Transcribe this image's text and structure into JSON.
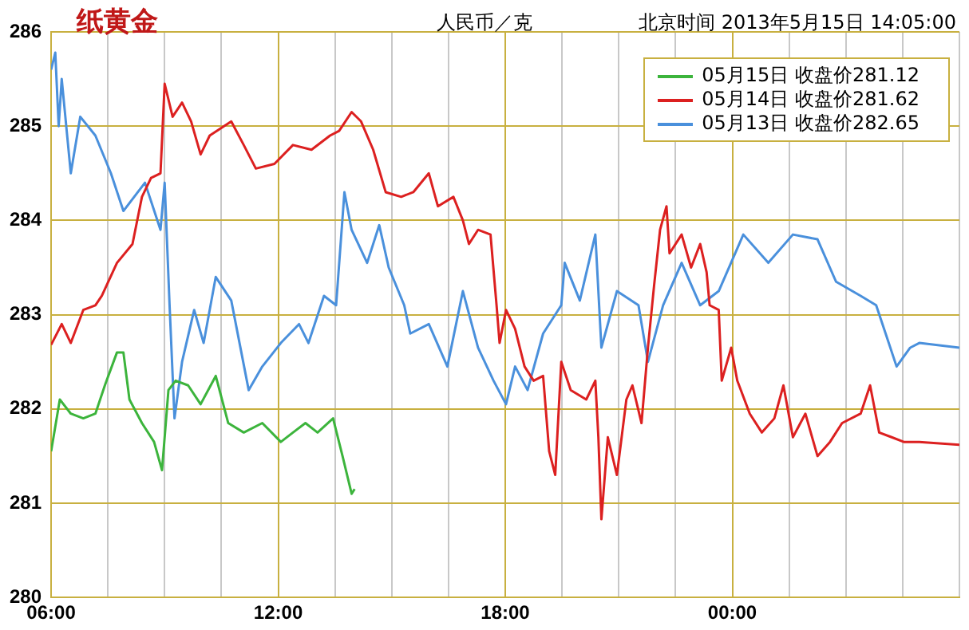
{
  "chart_data": {
    "type": "line",
    "title": "纸黄金",
    "ylabel": "人民币／克",
    "annotations": [
      "北京时间 2013年5月15日 14:05:00"
    ],
    "xlim": [
      6,
      30
    ],
    "xticks": [
      {
        "value": 6,
        "label": "06:00"
      },
      {
        "value": 7.5,
        "label": null
      },
      {
        "value": 9,
        "label": null
      },
      {
        "value": 10.5,
        "label": null
      },
      {
        "value": 12,
        "label": "12:00"
      },
      {
        "value": 13.5,
        "label": null
      },
      {
        "value": 15,
        "label": null
      },
      {
        "value": 16.5,
        "label": null
      },
      {
        "value": 18,
        "label": "18:00"
      },
      {
        "value": 19.5,
        "label": null
      },
      {
        "value": 21,
        "label": null
      },
      {
        "value": 22.5,
        "label": null
      },
      {
        "value": 24,
        "label": "00:00"
      },
      {
        "value": 25.5,
        "label": null
      },
      {
        "value": 27,
        "label": null
      },
      {
        "value": 28.5,
        "label": null
      },
      {
        "value": 30,
        "label": null
      }
    ],
    "ylim": [
      280,
      286
    ],
    "yticks": [
      280,
      281,
      282,
      283,
      284,
      285,
      286
    ],
    "grid": true,
    "legend": "top right",
    "marker": "none",
    "line_style": "solid",
    "series": [
      {
        "name": "05月15日 收盘价281.12",
        "color": "#3cb43c",
        "x": [
          6.0,
          6.23,
          6.52,
          6.85,
          7.17,
          7.42,
          7.74,
          7.91,
          8.07,
          8.4,
          8.72,
          8.93,
          9.1,
          9.29,
          9.62,
          9.95,
          10.35,
          10.68,
          11.09,
          11.58,
          12.07,
          12.39,
          12.72,
          13.04,
          13.45,
          13.7,
          13.94,
          14.02
        ],
        "values": [
          281.55,
          282.1,
          281.95,
          281.9,
          281.95,
          282.25,
          282.6,
          282.6,
          282.1,
          281.85,
          281.65,
          281.35,
          282.2,
          282.3,
          282.25,
          282.05,
          282.35,
          281.85,
          281.75,
          281.85,
          281.65,
          281.75,
          281.85,
          281.75,
          281.9,
          281.5,
          281.1,
          281.15
        ]
      },
      {
        "name": "05月14日 收盘价281.62",
        "color": "#dc2020",
        "x": [
          6.0,
          6.28,
          6.52,
          6.85,
          7.17,
          7.34,
          7.74,
          8.15,
          8.4,
          8.64,
          8.89,
          9.0,
          9.21,
          9.46,
          9.7,
          9.95,
          10.19,
          10.76,
          11.09,
          11.41,
          11.9,
          12.39,
          12.88,
          13.37,
          13.61,
          13.94,
          14.19,
          14.51,
          14.84,
          15.25,
          15.57,
          15.98,
          16.22,
          16.63,
          16.88,
          17.04,
          17.28,
          17.61,
          17.77,
          17.85,
          18.02,
          18.26,
          18.51,
          18.75,
          19.0,
          19.16,
          19.32,
          19.48,
          19.73,
          20.14,
          20.38,
          20.46,
          20.54,
          20.71,
          20.95,
          21.2,
          21.36,
          21.6,
          21.77,
          21.93,
          22.09,
          22.26,
          22.34,
          22.66,
          22.91,
          23.15,
          23.32,
          23.4,
          23.64,
          23.72,
          23.97,
          24.13,
          24.46,
          24.78,
          25.11,
          25.35,
          25.6,
          25.93,
          26.25,
          26.58,
          26.9,
          27.39,
          27.64,
          27.88,
          28.21,
          28.53,
          28.94,
          30
        ],
        "values": [
          282.68,
          282.9,
          282.7,
          283.05,
          283.1,
          283.2,
          283.55,
          283.75,
          284.25,
          284.45,
          284.5,
          285.45,
          285.1,
          285.25,
          285.05,
          284.7,
          284.9,
          285.05,
          284.8,
          284.55,
          284.6,
          284.8,
          284.75,
          284.9,
          284.95,
          285.15,
          285.05,
          284.75,
          284.3,
          284.25,
          284.3,
          284.5,
          284.15,
          284.25,
          284.0,
          283.75,
          283.9,
          283.85,
          283.1,
          282.7,
          283.05,
          282.85,
          282.45,
          282.3,
          282.35,
          281.55,
          281.3,
          282.5,
          282.2,
          282.1,
          282.3,
          281.7,
          280.83,
          281.7,
          281.3,
          282.1,
          282.25,
          281.85,
          282.65,
          283.3,
          283.9,
          284.15,
          283.65,
          283.85,
          283.5,
          283.75,
          283.45,
          283.1,
          283.05,
          282.3,
          282.65,
          282.3,
          281.95,
          281.75,
          281.9,
          282.25,
          281.7,
          281.95,
          281.5,
          281.65,
          281.85,
          281.95,
          282.25,
          281.75,
          281.7,
          281.65,
          281.65,
          281.62
        ]
      },
      {
        "name": "05月13日 收盘价282.65",
        "color": "#4a90dc",
        "x": [
          6.0,
          6.11,
          6.2,
          6.28,
          6.52,
          6.77,
          7.17,
          7.58,
          7.91,
          8.48,
          8.89,
          9.0,
          9.13,
          9.16,
          9.26,
          9.46,
          9.78,
          10.03,
          10.35,
          10.76,
          11.22,
          11.58,
          12.07,
          12.55,
          12.8,
          13.21,
          13.53,
          13.75,
          13.94,
          14.35,
          14.67,
          14.92,
          15.33,
          15.49,
          15.98,
          16.47,
          16.88,
          17.28,
          17.69,
          18.02,
          18.26,
          18.59,
          19.0,
          19.48,
          19.57,
          19.97,
          20.38,
          20.54,
          20.95,
          21.52,
          21.77,
          22.17,
          22.66,
          23.15,
          23.64,
          24.29,
          24.95,
          25.6,
          26.25,
          26.74,
          27.39,
          27.8,
          28.05,
          28.34,
          28.7,
          28.94,
          30
        ],
        "values": [
          285.6,
          285.78,
          285.0,
          285.5,
          284.5,
          285.1,
          284.9,
          284.5,
          284.1,
          284.4,
          283.9,
          284.4,
          283.1,
          283.1,
          281.9,
          282.5,
          283.05,
          282.7,
          283.4,
          283.15,
          282.2,
          282.45,
          282.7,
          282.9,
          282.7,
          283.2,
          283.1,
          284.3,
          283.9,
          283.55,
          283.95,
          283.5,
          283.1,
          282.8,
          282.9,
          282.45,
          283.25,
          282.65,
          282.3,
          282.05,
          282.45,
          282.2,
          282.8,
          283.1,
          283.55,
          283.15,
          283.85,
          282.65,
          283.25,
          283.1,
          282.5,
          283.1,
          283.55,
          283.1,
          283.25,
          283.85,
          283.55,
          283.85,
          283.8,
          283.35,
          283.2,
          283.1,
          282.8,
          282.45,
          282.65,
          282.7,
          282.65
        ]
      }
    ]
  }
}
